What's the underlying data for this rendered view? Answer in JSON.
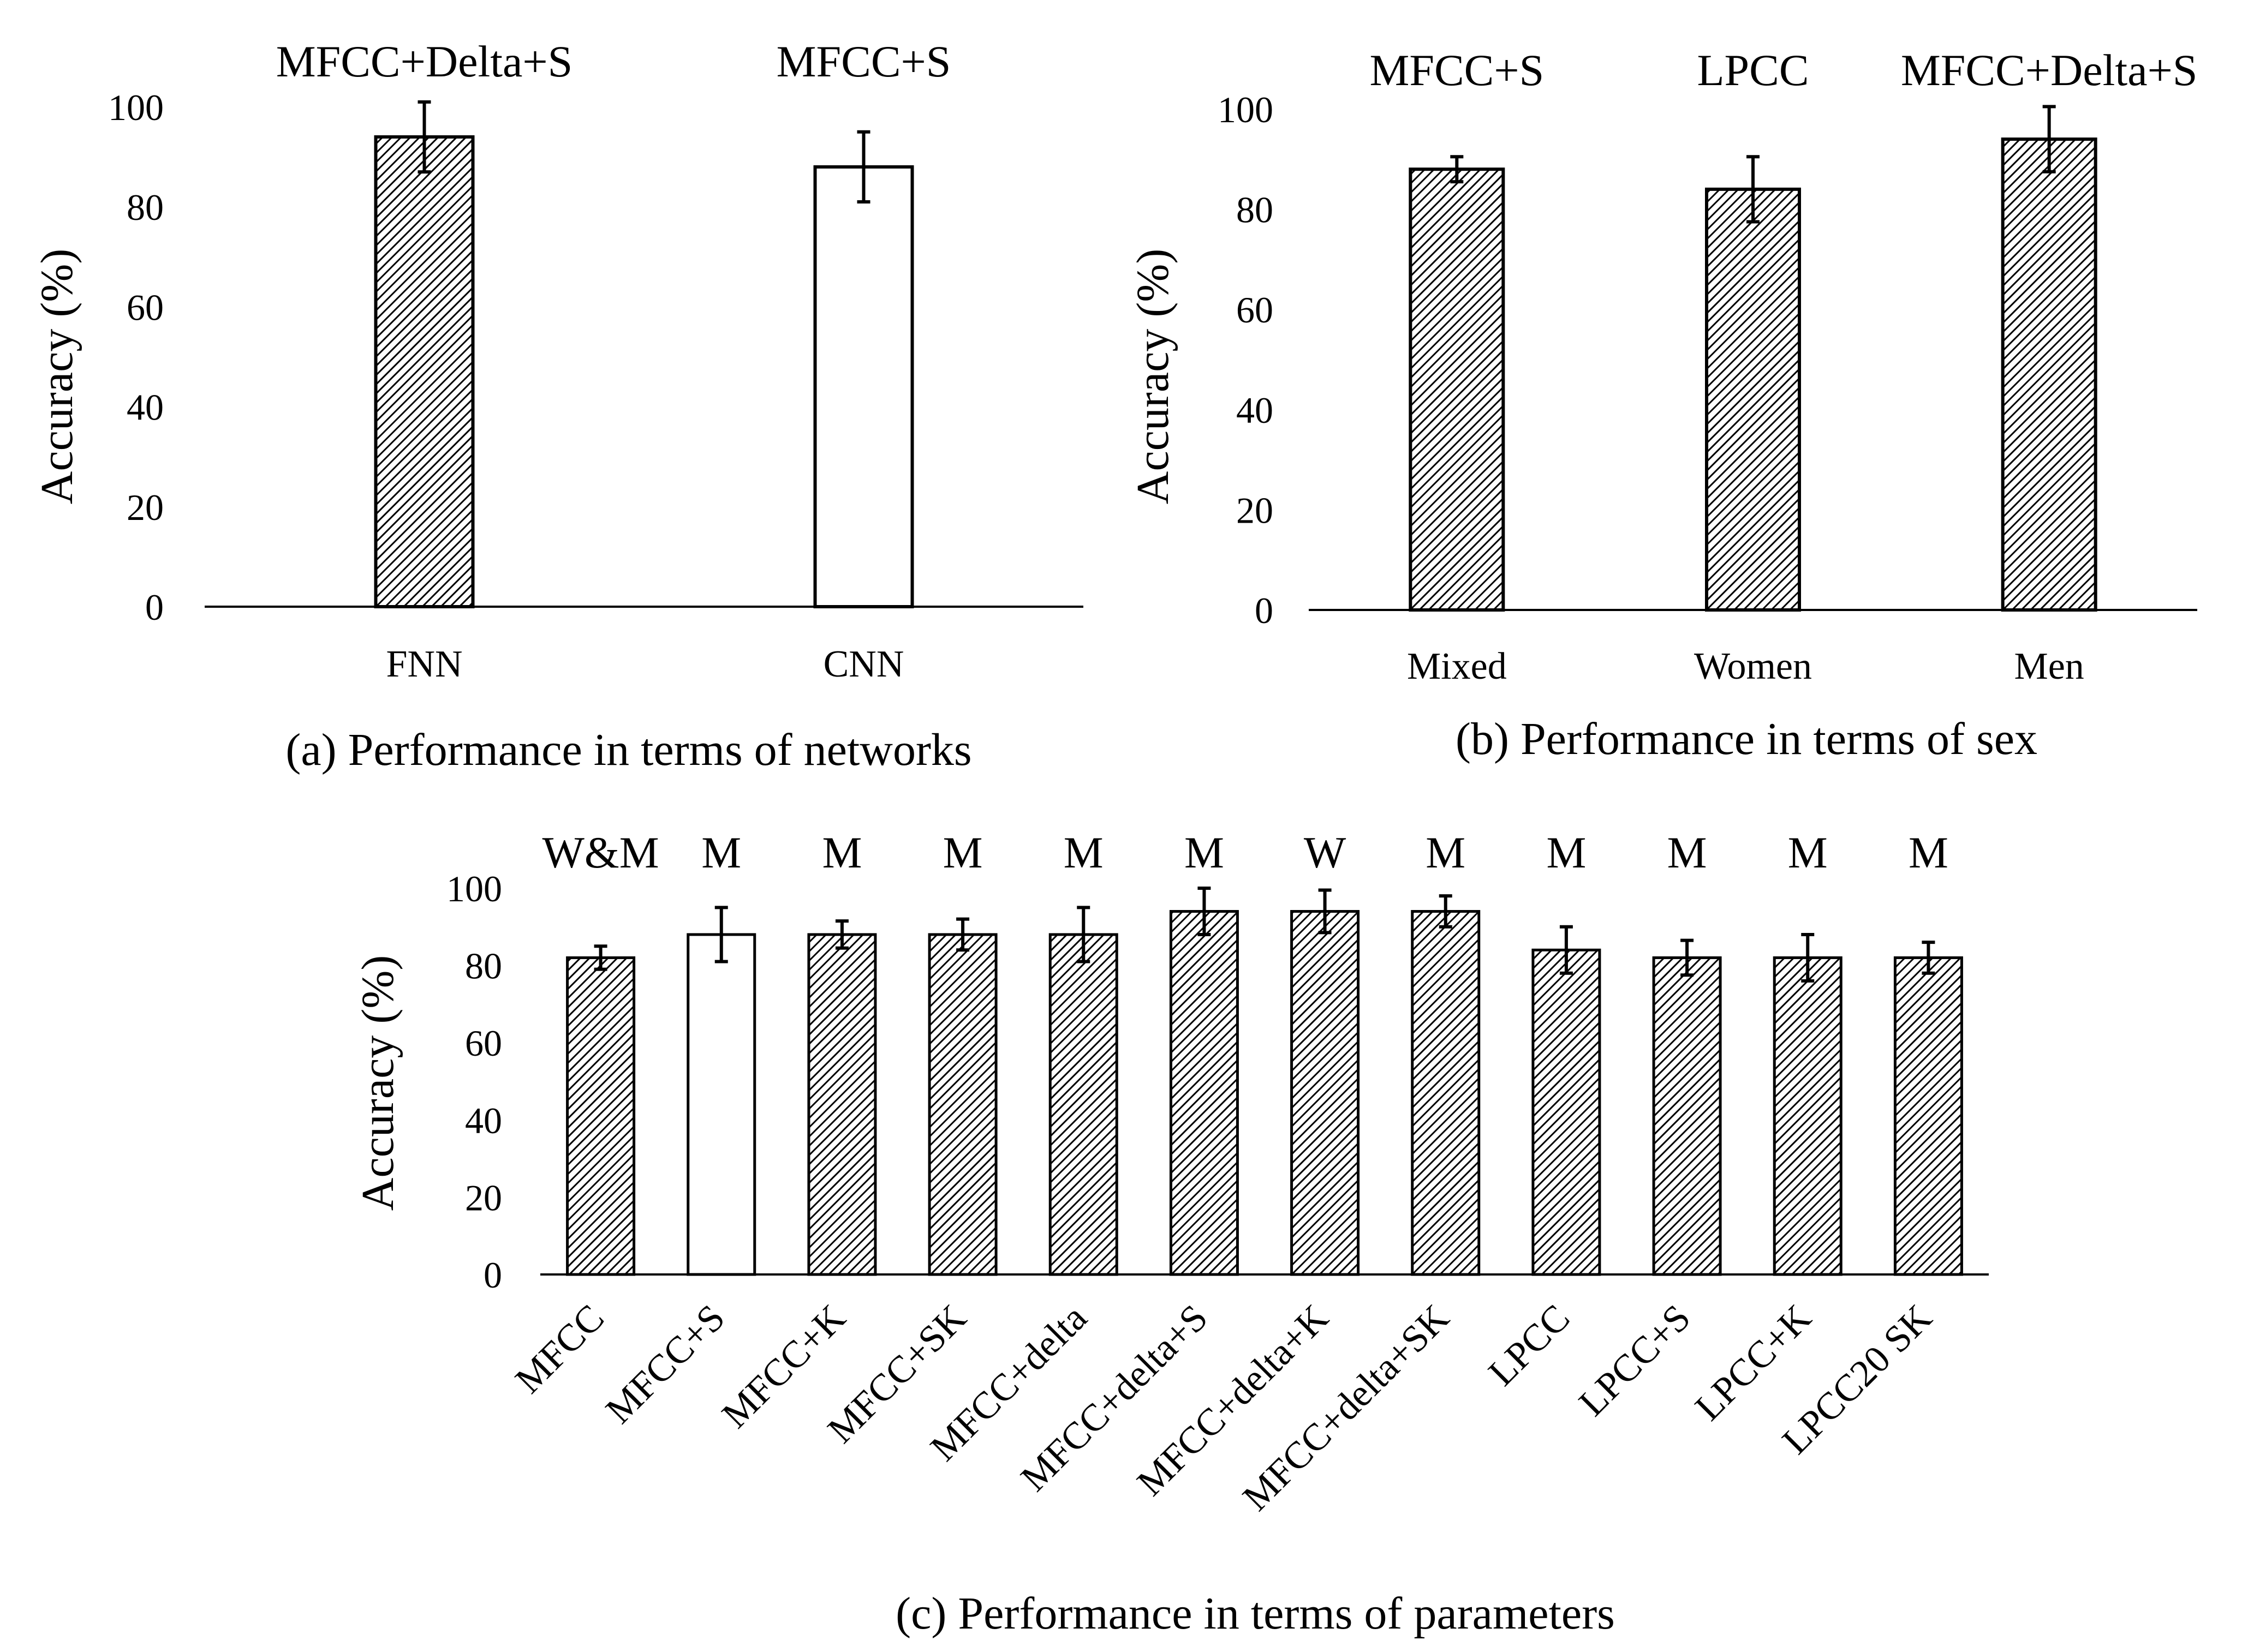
{
  "figure": {
    "colors": {
      "ink": "#000000",
      "open_bar": "#ffffff",
      "hatch_bar": "hatched"
    }
  },
  "chart_data": [
    {
      "id": "a",
      "type": "bar",
      "caption": "(a) Performance in terms of networks",
      "ylabel": "Accuracy (%)",
      "xlabel": "",
      "ylim": [
        0,
        100
      ],
      "yticks": [
        0,
        20,
        40,
        60,
        80,
        100
      ],
      "grid": false,
      "categories": [
        "FNN",
        "CNN"
      ],
      "values": [
        94,
        88
      ],
      "errors": [
        7,
        7
      ],
      "fills": [
        "hatched",
        "open"
      ],
      "bar_labels": [
        "MFCC+Delta+S",
        "MFCC+S"
      ]
    },
    {
      "id": "b",
      "type": "bar",
      "caption": "(b) Performance in terms of sex",
      "ylabel": "Accuracy (%)",
      "xlabel": "",
      "ylim": [
        0,
        100
      ],
      "yticks": [
        0,
        20,
        40,
        60,
        80,
        100
      ],
      "grid": false,
      "categories": [
        "Mixed",
        "Women",
        "Men"
      ],
      "values": [
        88,
        84,
        94
      ],
      "errors": [
        2.5,
        6.5,
        6.5
      ],
      "fills": [
        "hatched",
        "hatched",
        "hatched"
      ],
      "bar_labels": [
        "MFCC+S",
        "LPCC",
        "MFCC+Delta+S"
      ]
    },
    {
      "id": "c",
      "type": "bar",
      "caption": "(c) Performance in terms of parameters",
      "ylabel": "Accuracy (%)",
      "xlabel": "",
      "ylim": [
        0,
        100
      ],
      "yticks": [
        0,
        20,
        40,
        60,
        80,
        100
      ],
      "grid": false,
      "categories": [
        "MFCC",
        "MFCC+S",
        "MFCC+K",
        "MFCC+SK",
        "MFCC+delta",
        "MFCC+delta+S",
        "MFCC+delta+K",
        "MFCC+delta+SK",
        "LPCC",
        "LPCC+S",
        "LPCC+K",
        "LPCC20 SK"
      ],
      "values": [
        82,
        88,
        88,
        88,
        88,
        94,
        94,
        94,
        84,
        82,
        82,
        82
      ],
      "errors": [
        3,
        7,
        3.5,
        4,
        7,
        6,
        5.5,
        4,
        6,
        4.5,
        6,
        4
      ],
      "fills": [
        "hatched",
        "open",
        "hatched",
        "hatched",
        "hatched",
        "hatched",
        "hatched",
        "hatched",
        "hatched",
        "hatched",
        "hatched",
        "hatched"
      ],
      "bar_labels": [
        "W&M",
        "M",
        "M",
        "M",
        "M",
        "M",
        "W",
        "M",
        "M",
        "M",
        "M",
        "M"
      ]
    }
  ]
}
